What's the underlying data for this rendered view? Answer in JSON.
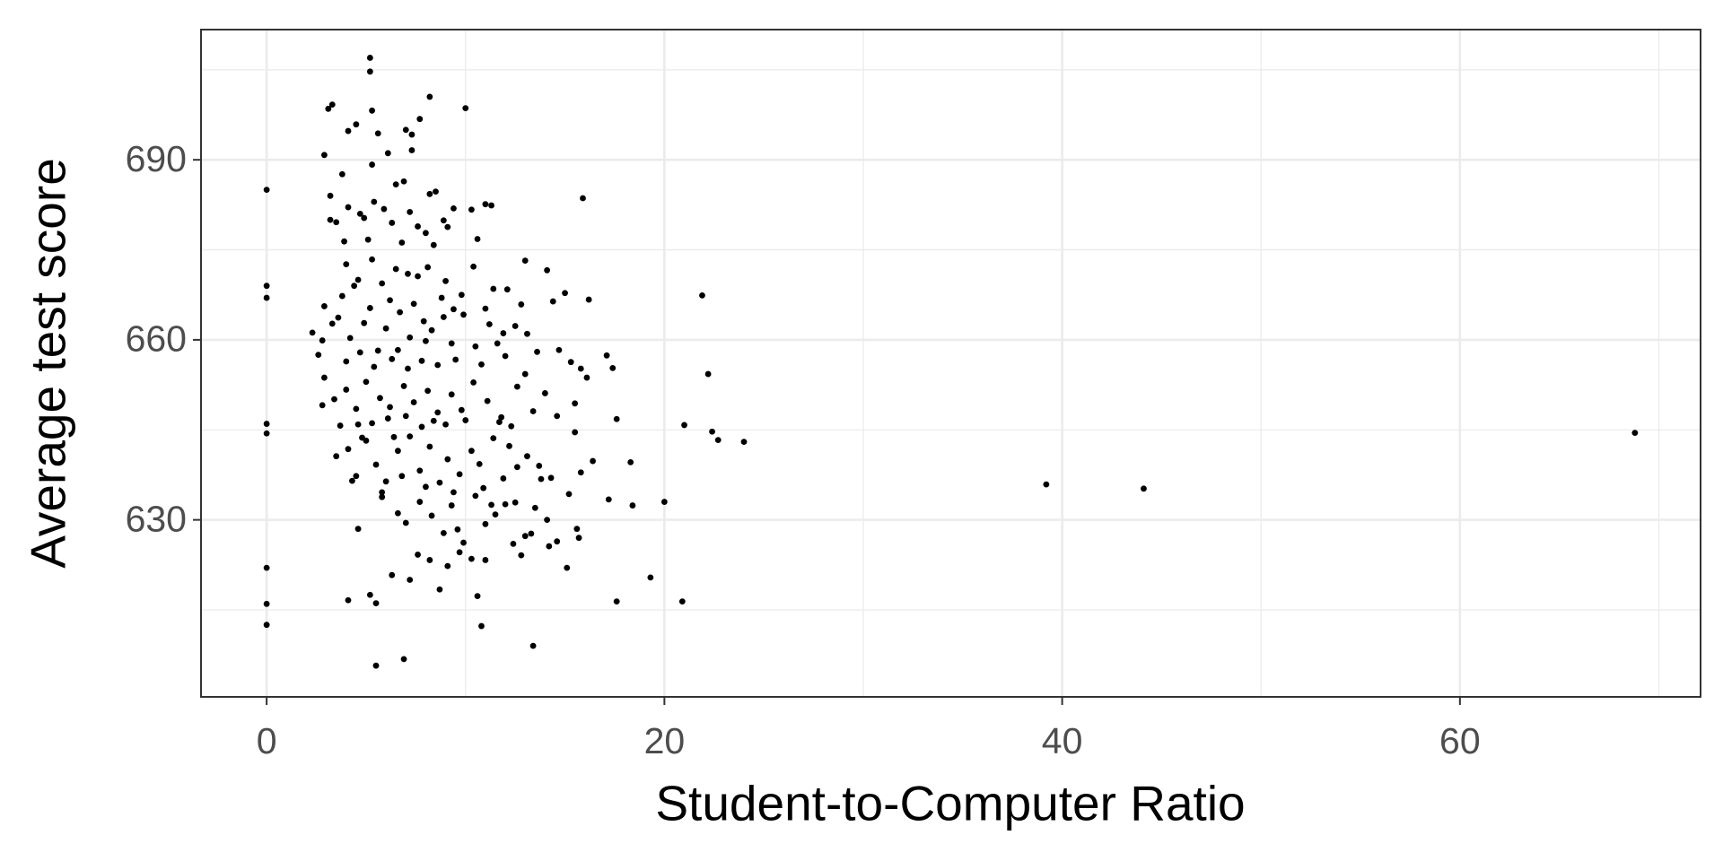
{
  "chart_data": {
    "type": "scatter",
    "xlabel": "Student-to-Computer Ratio",
    "ylabel": "Average test score",
    "color": "#000000",
    "grid": true,
    "xlim": [
      -3.3,
      72.1
    ],
    "ylim": [
      600.5,
      711.7
    ],
    "xticks": [
      0,
      20,
      40,
      60
    ],
    "yticks": [
      630,
      660,
      690
    ],
    "x": [
      68.8,
      39.2,
      44.1,
      0,
      0,
      0,
      0,
      0,
      0,
      0,
      0,
      5.2,
      5.2,
      15.9,
      21.9,
      22.2,
      21,
      22.4,
      22.7,
      24,
      20,
      19.3,
      20.9,
      17.6,
      13.4,
      5.5,
      6.9,
      10.8,
      10.6,
      18.3,
      18.4,
      3.1,
      3.3,
      4.1,
      4.5,
      5.6,
      7.0,
      7.3,
      8.2,
      10.0,
      5.3,
      7.7,
      2.9,
      3.8,
      6.1,
      7.3,
      6.9,
      8.5,
      8.2,
      5.3,
      3.2,
      6.5,
      3.5,
      4.1,
      4.9,
      5.4,
      5.9,
      6.3,
      7.2,
      8.0,
      8.9,
      9.4,
      10.3,
      11.0,
      11.3,
      3.2,
      3.9,
      5.1,
      6.8,
      8.4,
      10.6,
      9.1,
      4.7,
      7.6,
      4.0,
      4.6,
      5.3,
      5.8,
      6.5,
      7.1,
      7.6,
      8.1,
      9.0,
      9.8,
      10.4,
      11.4,
      12.1,
      12.8,
      13.0,
      14.1,
      14.4,
      15.0,
      16.2,
      2.9,
      3.8,
      6.2,
      7.4,
      8.8,
      9.4,
      11.0,
      4.4,
      5.2,
      2.3,
      2.8,
      3.6,
      4.2,
      4.9,
      5.6,
      6.0,
      6.7,
      7.2,
      7.9,
      8.3,
      8.9,
      9.3,
      9.9,
      10.5,
      11.2,
      11.9,
      12.5,
      13.1,
      13.6,
      14.7,
      15.3,
      15.8,
      16.1,
      17.1,
      17.4,
      2.6,
      4.0,
      4.7,
      5.4,
      6.3,
      7.1,
      7.8,
      8.6,
      9.5,
      10.8,
      12.0,
      3.3,
      8.0,
      11.6,
      6.6,
      2.8,
      3.4,
      4.0,
      4.5,
      5.0,
      5.7,
      6.2,
      6.9,
      7.4,
      8.1,
      8.6,
      9.3,
      9.8,
      10.4,
      11.1,
      11.8,
      12.6,
      13.4,
      14.6,
      15.5,
      3.7,
      4.6,
      5.3,
      6.1,
      7.0,
      7.8,
      8.4,
      9.0,
      10.0,
      11.7,
      12.3,
      17.6,
      2.9,
      13.0,
      14.0,
      3.5,
      4.1,
      4.5,
      5.0,
      5.5,
      6.0,
      6.6,
      7.2,
      7.7,
      8.2,
      8.7,
      9.1,
      9.7,
      10.3,
      10.9,
      11.4,
      11.9,
      12.6,
      13.1,
      13.8,
      14.3,
      15.2,
      15.8,
      16.4,
      17.2,
      4.3,
      5.8,
      6.8,
      8.0,
      9.4,
      10.7,
      12.2,
      13.7,
      15.5,
      4.8,
      6.4,
      4.6,
      5.8,
      6.6,
      7.0,
      7.7,
      8.3,
      8.9,
      9.3,
      9.9,
      10.5,
      11.0,
      11.5,
      12.0,
      12.5,
      13.0,
      13.5,
      14.1,
      14.6,
      15.6,
      15.7,
      12.4,
      9.6,
      11.3,
      4.1,
      5.2,
      5.5,
      6.3,
      7.2,
      7.6,
      8.2,
      8.7,
      9.1,
      9.7,
      10.3,
      11.0,
      12.8,
      13.3,
      15.1,
      14.2
    ],
    "y": [
      644.5,
      635.9,
      635.2,
      685,
      669,
      667,
      646,
      644.4,
      622,
      616,
      612.5,
      707,
      704.7,
      683.6,
      667.4,
      654.3,
      645.8,
      644.7,
      643.3,
      643,
      633,
      620.4,
      616.4,
      616.4,
      609,
      605.7,
      606.8,
      612.3,
      617.3,
      639.6,
      632.4,
      698.5,
      699.2,
      694.8,
      695.9,
      694.4,
      695.0,
      694.2,
      700.5,
      698.6,
      698.2,
      696.8,
      690.8,
      687.6,
      691.1,
      691.6,
      686.4,
      684.7,
      684.3,
      689.2,
      684.0,
      685.9,
      679.6,
      682.1,
      680.3,
      683.0,
      681.8,
      679.5,
      681.3,
      677.8,
      679.9,
      681.9,
      681.7,
      682.6,
      682.4,
      680.0,
      676.4,
      676.7,
      676.2,
      675.8,
      676.8,
      678.8,
      681.0,
      678.9,
      672.6,
      670.0,
      673.4,
      669.4,
      671.8,
      671.0,
      670.6,
      672.1,
      669.8,
      667.5,
      672.2,
      668.5,
      668.4,
      665.9,
      673.2,
      671.6,
      666.4,
      667.8,
      666.7,
      665.6,
      667.3,
      666.6,
      666.0,
      667.0,
      665.1,
      665.2,
      669.0,
      665.3,
      661.2,
      659.9,
      663.7,
      660.3,
      662.8,
      658.2,
      661.9,
      664.6,
      660.4,
      663.1,
      661.6,
      663.8,
      659.4,
      664.2,
      658.9,
      662.6,
      661.1,
      662.3,
      661.0,
      658.0,
      658.3,
      656.3,
      655.2,
      653.7,
      657.4,
      655.3,
      657.5,
      656.4,
      657.9,
      655.5,
      656.8,
      655.2,
      656.5,
      655.8,
      656.7,
      655.9,
      657.3,
      662.7,
      659.8,
      659.4,
      658.3,
      649.1,
      650.1,
      651.7,
      648.5,
      653.0,
      650.3,
      648.8,
      652.3,
      649.6,
      651.5,
      647.9,
      650.9,
      648.3,
      652.9,
      649.8,
      647.1,
      652.2,
      648.1,
      647.3,
      649.4,
      645.7,
      645.9,
      646.1,
      646.9,
      647.3,
      645.5,
      646.5,
      645.9,
      646.6,
      646.3,
      645.6,
      646.8,
      653.7,
      654.3,
      651.1,
      640.6,
      641.8,
      637.3,
      643.2,
      639.2,
      636.4,
      641.5,
      643.9,
      638.2,
      642.2,
      636.2,
      640.1,
      637.6,
      641.5,
      635.3,
      643.6,
      636.9,
      638.8,
      640.6,
      636.8,
      637.0,
      634.3,
      637.9,
      639.8,
      633.4,
      636.5,
      634.6,
      637.3,
      635.5,
      634.6,
      639.3,
      642.3,
      639.0,
      644.6,
      643.7,
      643.8,
      628.5,
      633.8,
      631.1,
      629.5,
      633.0,
      630.7,
      627.8,
      632.4,
      626.2,
      634.0,
      629.3,
      630.9,
      632.6,
      632.9,
      627.3,
      632.0,
      630.0,
      626.4,
      628.5,
      627.0,
      626.0,
      628.4,
      632.5,
      616.6,
      617.5,
      616.1,
      620.8,
      620.0,
      624.2,
      623.3,
      618.4,
      622.3,
      624.6,
      623.5,
      623.3,
      624.1,
      627.7,
      622.0,
      625.6
    ]
  }
}
